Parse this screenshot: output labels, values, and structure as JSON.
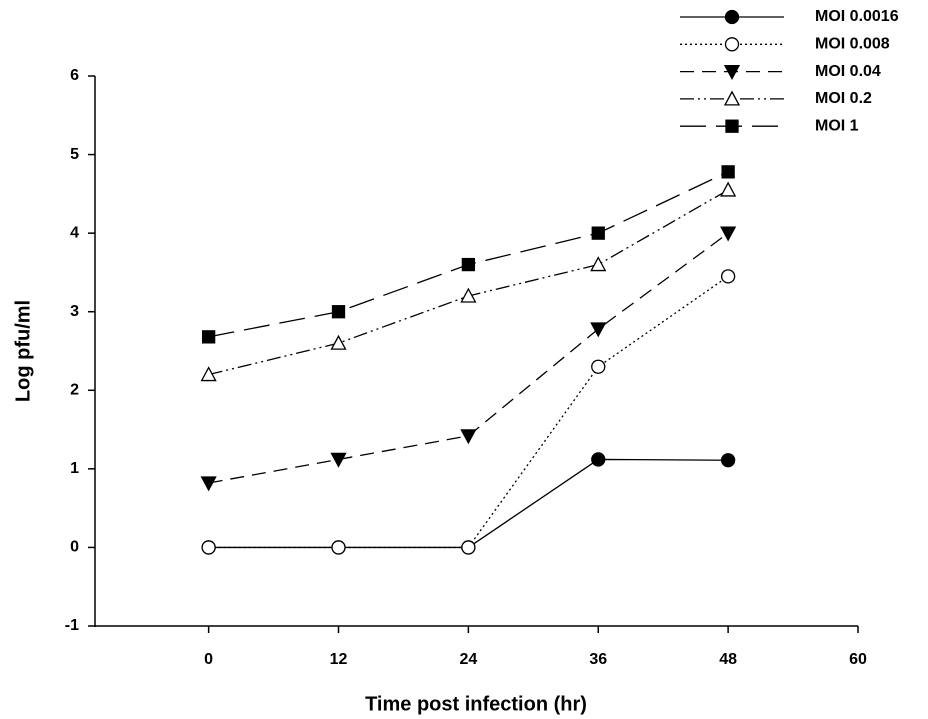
{
  "chart_data": {
    "type": "line",
    "x_label": "Time post infection (hr)",
    "y_label": "Log pfu/ml",
    "x": [
      0,
      12,
      24,
      36,
      48
    ],
    "xlim": [
      -10.5,
      60
    ],
    "xticks": [
      0,
      12,
      24,
      36,
      48,
      60
    ],
    "ylim": [
      -1,
      6
    ],
    "yticks": [
      -1,
      0,
      1,
      2,
      3,
      4,
      5,
      6
    ],
    "grid": false,
    "legend": "top-right",
    "series": [
      {
        "name": "MOI 0.0016",
        "color": "#000000",
        "marker": "circle",
        "marker_fill": "filled",
        "line_style": "solid",
        "values": [
          0,
          0,
          0,
          1.12,
          1.11
        ]
      },
      {
        "name": "MOI 0.008",
        "color": "#000000",
        "marker": "circle",
        "marker_fill": "open",
        "line_style": "dotted",
        "values": [
          0,
          0,
          0,
          2.3,
          3.45
        ]
      },
      {
        "name": "MOI 0.04",
        "color": "#000000",
        "marker": "triangle-down",
        "marker_fill": "filled",
        "line_style": "dashed",
        "values": [
          0.82,
          1.12,
          1.42,
          2.78,
          4.0
        ]
      },
      {
        "name": "MOI 0.2",
        "color": "#000000",
        "marker": "triangle-up",
        "marker_fill": "open",
        "line_style": "dash-dot-dot",
        "values": [
          2.2,
          2.6,
          3.2,
          3.6,
          4.55
        ]
      },
      {
        "name": "MOI 1",
        "color": "#000000",
        "marker": "square",
        "marker_fill": "filled",
        "line_style": "long-dash",
        "values": [
          2.68,
          3.0,
          3.6,
          4.0,
          4.78
        ]
      }
    ]
  }
}
